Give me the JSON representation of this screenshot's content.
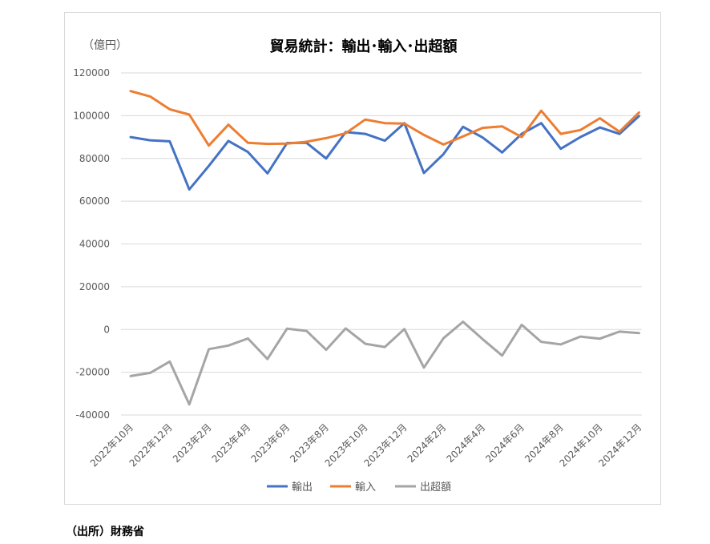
{
  "chart_data": {
    "type": "line",
    "title": "貿易統計：輸出･輸入･出超額",
    "unit": "（億円）",
    "ylim": [
      -40000,
      120000
    ],
    "yticks": [
      120000,
      100000,
      80000,
      60000,
      40000,
      20000,
      0,
      -20000,
      -40000
    ],
    "categories": [
      "2022年10月",
      "2022年11月",
      "2022年12月",
      "2023年1月",
      "2023年2月",
      "2023年3月",
      "2023年4月",
      "2023年5月",
      "2023年6月",
      "2023年7月",
      "2023年8月",
      "2023年9月",
      "2023年10月",
      "2023年11月",
      "2023年12月",
      "2024年1月",
      "2024年2月",
      "2024年3月",
      "2024年4月",
      "2024年5月",
      "2024年6月",
      "2024年7月",
      "2024年8月",
      "2024年9月",
      "2024年10月",
      "2024年11月",
      "2024年12月"
    ],
    "tick_labels": [
      "2022年10月",
      "2022年12月",
      "2023年2月",
      "2023年4月",
      "2023年6月",
      "2023年8月",
      "2023年10月",
      "2023年12月",
      "2024年2月",
      "2024年4月",
      "2024年6月",
      "2024年8月",
      "2024年10月",
      "2024年12月"
    ],
    "grid": true,
    "legend_position": "bottom",
    "series": [
      {
        "name": "輸出",
        "color": "#4472c4",
        "values": [
          90000,
          88500,
          88000,
          65500,
          76500,
          88200,
          83000,
          73000,
          87200,
          87300,
          80000,
          92300,
          91500,
          88300,
          96500,
          73200,
          82000,
          94800,
          89800,
          82800,
          91500,
          96500,
          84500,
          90000,
          94500,
          91500,
          99800
        ]
      },
      {
        "name": "輸入",
        "color": "#ed7d31",
        "values": [
          111500,
          109000,
          103000,
          100500,
          86000,
          95800,
          87300,
          86800,
          86900,
          87800,
          89500,
          91800,
          98200,
          96500,
          96300,
          91000,
          86500,
          90300,
          94300,
          95000,
          90000,
          102300,
          91500,
          93300,
          98800,
          92500,
          101500
        ]
      },
      {
        "name": "出超額",
        "color": "#a5a5a5",
        "values": [
          -21800,
          -20300,
          -15000,
          -35000,
          -9200,
          -7500,
          -4200,
          -13800,
          400,
          -700,
          -9500,
          500,
          -6700,
          -8200,
          200,
          -17800,
          -4100,
          3600,
          -4500,
          -12200,
          2200,
          -5800,
          -7000,
          -3300,
          -4300,
          -1000,
          -1700
        ]
      }
    ]
  },
  "source": "（出所）財務省"
}
